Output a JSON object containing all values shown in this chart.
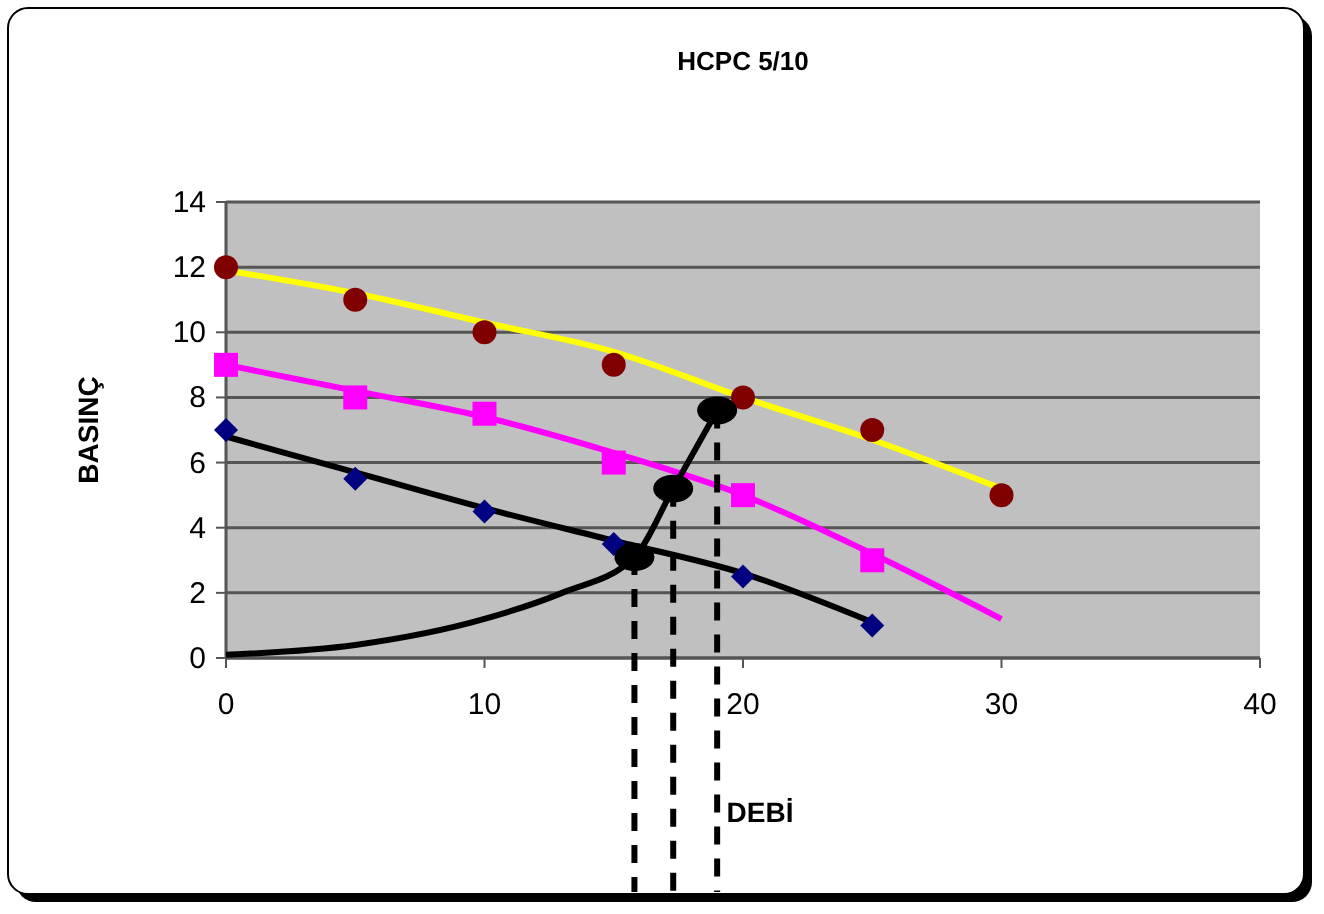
{
  "chart_data": {
    "type": "scatter",
    "title": "HCPC 5/10",
    "xlabel": "DEBİ",
    "ylabel": "BASINÇ",
    "xlim": [
      0,
      40
    ],
    "ylim": [
      0,
      14
    ],
    "xticks": [
      0,
      10,
      20,
      30,
      40
    ],
    "yticks": [
      0,
      2,
      4,
      6,
      8,
      10,
      12,
      14
    ],
    "grid": "y",
    "series": [
      {
        "type": "line",
        "color": "#ffff00",
        "x": [
          0,
          5,
          10,
          15,
          20,
          25,
          30
        ],
        "values": [
          11.9,
          11.2,
          10.3,
          9.4,
          8.0,
          6.7,
          5.2
        ]
      },
      {
        "type": "line",
        "color": "#ff00ff",
        "x": [
          0,
          5,
          10,
          15,
          20,
          25,
          30
        ],
        "values": [
          9,
          8.2,
          7.4,
          6.3,
          5.0,
          3.2,
          1.2
        ]
      },
      {
        "type": "line",
        "color": "#000000",
        "x": [
          0,
          5,
          10,
          15,
          20,
          25
        ],
        "values": [
          6.8,
          5.7,
          4.6,
          3.6,
          2.6,
          1.1
        ]
      },
      {
        "color": "#800000",
        "marker": "circle",
        "x": [
          0,
          5,
          10,
          15,
          20,
          25,
          30
        ],
        "values": [
          12,
          11,
          10,
          9,
          8,
          7,
          5
        ]
      },
      {
        "color": "#ff00ff",
        "marker": "square",
        "x": [
          0,
          5,
          10,
          15,
          20,
          25
        ],
        "values": [
          9,
          8,
          7.5,
          6,
          5,
          3
        ]
      },
      {
        "color": "#000080",
        "marker": "diamond",
        "x": [
          0,
          5,
          10,
          15,
          20,
          25
        ],
        "values": [
          7,
          5.5,
          4.5,
          3.5,
          2.5,
          1
        ]
      },
      {
        "type": "line",
        "color": "#000000",
        "x": [
          0,
          5,
          10,
          13,
          15.8,
          17.3,
          19
        ],
        "values": [
          0.1,
          0.4,
          1.2,
          2.0,
          3.1,
          5.2,
          7.6
        ]
      },
      {
        "color": "#000000",
        "marker": "circle",
        "x": [
          15.8,
          17.3,
          19
        ],
        "values": [
          3.1,
          5.2,
          7.6
        ]
      },
      {
        "type": "line",
        "color": "#000000",
        "line_style": "dashed",
        "x": [
          15.8,
          15.8
        ],
        "values": [
          3.1,
          0
        ]
      },
      {
        "type": "line",
        "color": "#000000",
        "line_style": "dashed",
        "x": [
          17.3,
          17.3
        ],
        "values": [
          5.2,
          0
        ]
      },
      {
        "type": "line",
        "color": "#000000",
        "line_style": "dashed",
        "x": [
          19,
          19
        ],
        "values": [
          7.6,
          0
        ]
      }
    ]
  }
}
